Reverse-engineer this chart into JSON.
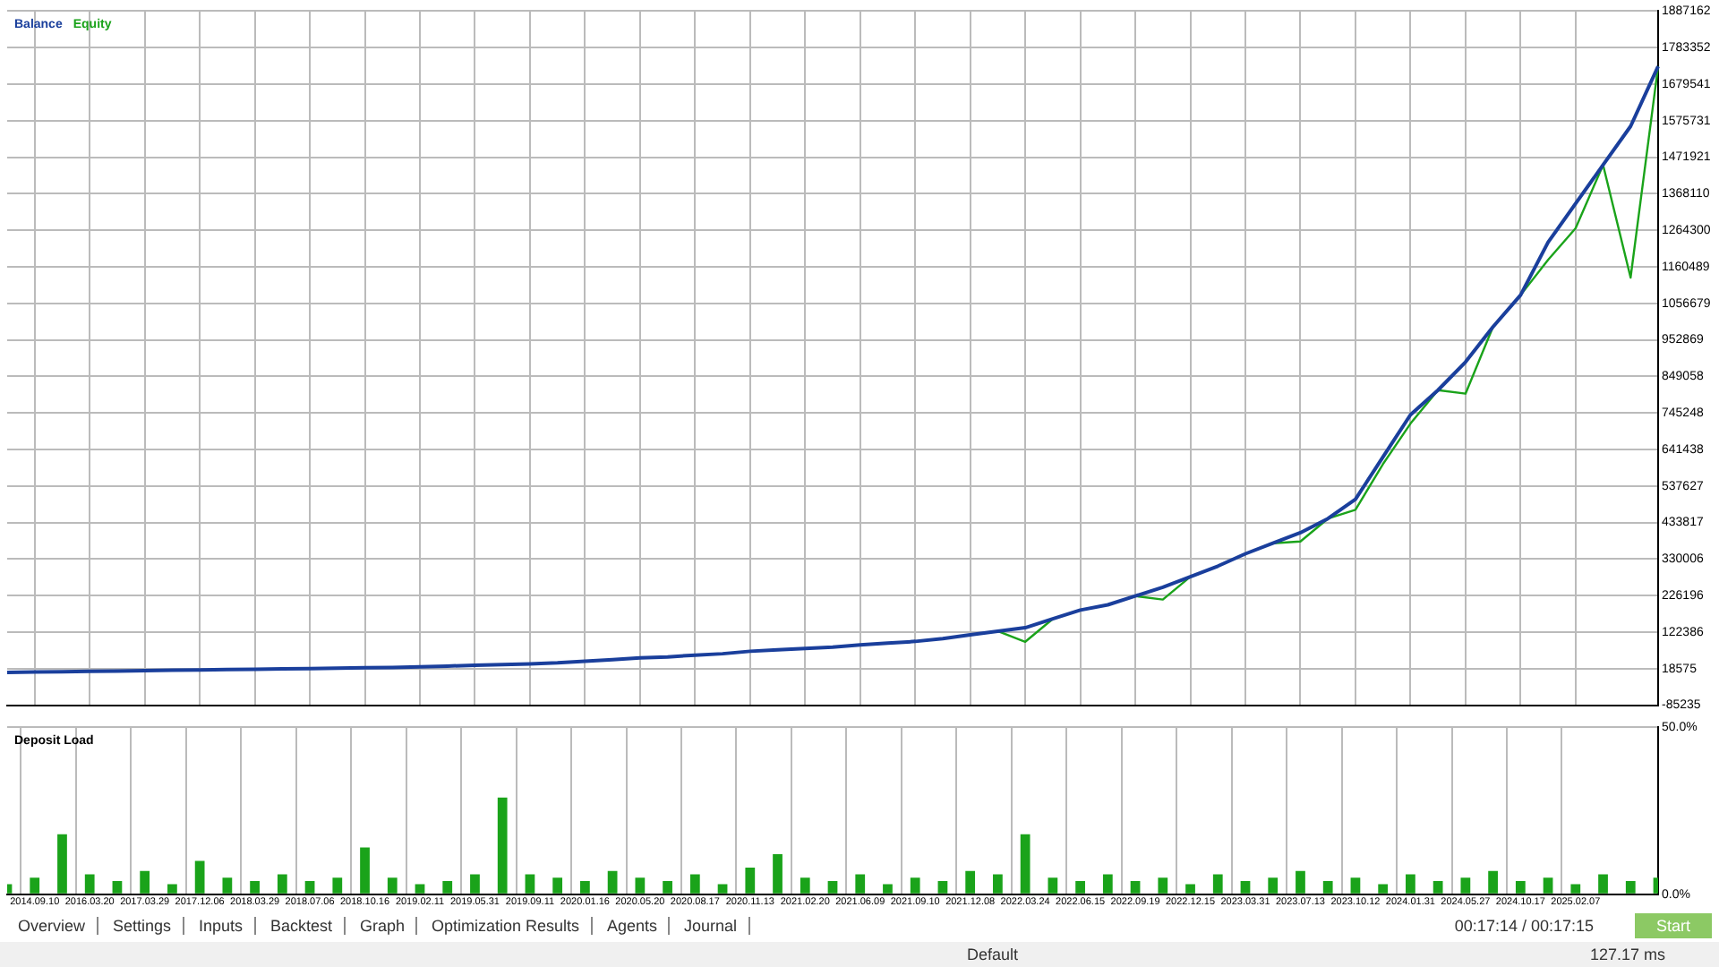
{
  "chart_data": [
    {
      "type": "line",
      "legend": "top left",
      "grid": true,
      "tick_labels": "y",
      "categories": [
        null,
        "2014.09.10",
        null,
        "2016.03.20",
        null,
        "2017.03.29",
        null,
        "2017.12.06",
        null,
        "2018.03.29",
        null,
        "2018.07.06",
        null,
        "2018.10.16",
        null,
        "2019.02.11",
        null,
        "2019.05.31",
        null,
        "2019.09.11",
        null,
        "2020.01.16",
        null,
        "2020.05.20",
        null,
        "2020.08.17",
        null,
        "2020.11.13",
        null,
        "2021.02.20",
        null,
        "2021.06.09",
        null,
        "2021.09.10",
        null,
        "2021.12.08",
        null,
        "2022.03.24",
        null,
        "2022.06.15",
        null,
        "2022.09.19",
        null,
        "2022.12.15",
        null,
        "2023.03.31",
        null,
        "2023.07.13",
        null,
        "2023.10.12",
        null,
        "2024.01.31",
        null,
        "2024.05.27",
        null,
        "2024.10.17",
        null,
        "2025.02.07",
        null,
        null,
        null
      ],
      "ylim": [
        -85235,
        1887162
      ],
      "yticks": [
        -85235,
        18575,
        122386,
        226196,
        330006,
        433817,
        537627,
        641438,
        745248,
        849058,
        952869,
        1056679,
        1160489,
        1264300,
        1368110,
        1471921,
        1575731,
        1679541,
        1783352,
        1887162
      ],
      "series": [
        {
          "name": "Balance",
          "color": "#1a3f9c",
          "values": [
            8000,
            9000,
            10000,
            11000,
            12000,
            13000,
            14000,
            15000,
            16000,
            17000,
            18000,
            19000,
            20000,
            21000,
            22000,
            24000,
            26000,
            28000,
            30000,
            32000,
            35000,
            40000,
            44000,
            49000,
            52000,
            57000,
            61000,
            68000,
            72000,
            76000,
            80000,
            86000,
            91000,
            96000,
            104000,
            115000,
            125000,
            135000,
            160000,
            185000,
            200000,
            225000,
            250000,
            280000,
            310000,
            345000,
            375000,
            405000,
            445000,
            500000,
            620000,
            740000,
            810000,
            890000,
            990000,
            1080000,
            1230000,
            1340000,
            1450000,
            1560000,
            1730000
          ]
        },
        {
          "name": "Equity",
          "color": "#1aa31a",
          "values": [
            null,
            null,
            null,
            null,
            null,
            null,
            null,
            null,
            null,
            null,
            null,
            null,
            null,
            null,
            null,
            null,
            null,
            null,
            null,
            null,
            null,
            null,
            null,
            null,
            null,
            null,
            null,
            null,
            null,
            null,
            null,
            null,
            null,
            null,
            null,
            null,
            125000,
            95000,
            160000,
            null,
            null,
            225000,
            215000,
            280000,
            null,
            null,
            375000,
            380000,
            445000,
            470000,
            600000,
            715000,
            810000,
            800000,
            990000,
            1080000,
            1180000,
            1270000,
            1450000,
            1130000,
            1730000
          ]
        }
      ]
    },
    {
      "type": "bar",
      "ylabel": "Deposit Load",
      "grid": true,
      "color": "#1aa31a",
      "categories": [
        null,
        "2014.09.10",
        null,
        "2016.03.20",
        null,
        "2017.03.29",
        null,
        "2017.12.06",
        null,
        "2018.03.29",
        null,
        "2018.07.06",
        null,
        "2018.10.16",
        null,
        "2019.02.11",
        null,
        "2019.05.31",
        null,
        "2019.09.11",
        null,
        "2020.01.16",
        null,
        "2020.05.20",
        null,
        "2020.08.17",
        null,
        "2020.11.13",
        null,
        "2021.02.20",
        null,
        "2021.06.09",
        null,
        "2021.09.10",
        null,
        "2021.12.08",
        null,
        "2022.03.24",
        null,
        "2022.06.15",
        null,
        "2022.09.19",
        null,
        "2022.12.15",
        null,
        "2023.03.31",
        null,
        "2023.07.13",
        null,
        "2023.10.12",
        null,
        "2024.01.31",
        null,
        "2024.05.27",
        null,
        "2024.10.17",
        null,
        "2025.02.07",
        null,
        null,
        null
      ],
      "ylim": [
        0,
        50
      ],
      "yticks": [
        {
          "value": 0,
          "label": "0.0%"
        },
        {
          "value": 50,
          "label": "50.0%"
        }
      ],
      "values": [
        3,
        5,
        18,
        6,
        4,
        7,
        3,
        10,
        5,
        4,
        6,
        4,
        5,
        14,
        5,
        3,
        4,
        6,
        29,
        6,
        5,
        4,
        7,
        5,
        4,
        6,
        3,
        8,
        12,
        5,
        4,
        6,
        3,
        5,
        4,
        7,
        6,
        18,
        5,
        4,
        6,
        4,
        5,
        3,
        6,
        4,
        5,
        7,
        4,
        5,
        3,
        6,
        4,
        5,
        7,
        4,
        5,
        3,
        6,
        4,
        5
      ],
      "annotations": [
        "Overview",
        "Settings",
        "Inputs",
        "Backtest",
        "Graph",
        "Optimization Results",
        "Agents",
        "Journal",
        "00:17:14 / 00:17:15",
        "Start",
        "Default",
        "127.17 ms"
      ]
    }
  ]
}
